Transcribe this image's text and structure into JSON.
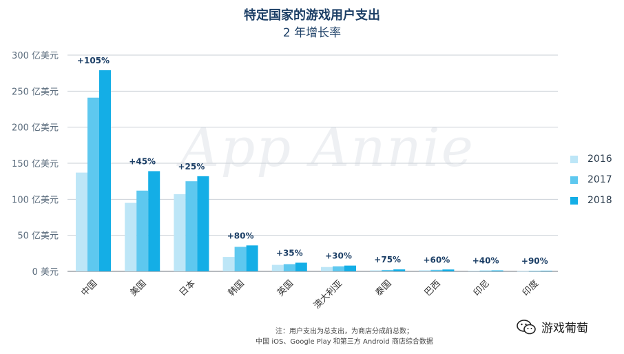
{
  "header": {
    "title": "特定国家的游戏用户支出",
    "subtitle": "2 年增长率"
  },
  "watermark": "App Annie",
  "legend": {
    "items": [
      {
        "label": "2016",
        "color": "#bde6f7"
      },
      {
        "label": "2017",
        "color": "#5ec8ef"
      },
      {
        "label": "2018",
        "color": "#14aee6"
      }
    ]
  },
  "note": {
    "line1": "注：用户支出为总支出，为商店分成前总数；",
    "line2": "中国 iOS、Google Play 和第三方 Android 商店综合数据"
  },
  "brand": {
    "name": "游戏葡萄",
    "icon": "wechat-icon"
  },
  "chart_data": {
    "type": "bar",
    "title": "特定国家的游戏用户支出",
    "subtitle": "2 年增长率",
    "categories": [
      "中国",
      "美国",
      "日本",
      "韩国",
      "英国",
      "澳大利亚",
      "泰国",
      "巴西",
      "印尼",
      "印度"
    ],
    "series": [
      {
        "name": "2016",
        "values": [
          137,
          95,
          107,
          20,
          9,
          6,
          1.5,
          1.6,
          0.9,
          0.4
        ]
      },
      {
        "name": "2017",
        "values": [
          241,
          112,
          125,
          34,
          10,
          7,
          2,
          2.1,
          1.1,
          0.6
        ]
      },
      {
        "name": "2018",
        "values": [
          279,
          139,
          132,
          36,
          12,
          8,
          2.7,
          2.6,
          1.3,
          0.8
        ]
      }
    ],
    "growth_labels": [
      "+105%",
      "+45%",
      "+25%",
      "+80%",
      "+35%",
      "+30%",
      "+75%",
      "+60%",
      "+40%",
      "+90%"
    ],
    "yticks": [
      {
        "value": 0,
        "label": "0 美元"
      },
      {
        "value": 50,
        "label": "50 亿美元"
      },
      {
        "value": 100,
        "label": "100 亿美元"
      },
      {
        "value": 150,
        "label": "150 亿美元"
      },
      {
        "value": 200,
        "label": "200 亿美元"
      },
      {
        "value": 250,
        "label": "250 亿美元"
      },
      {
        "value": 300,
        "label": "300 亿美元"
      }
    ],
    "ylim": [
      0,
      300
    ],
    "grid": true,
    "legend_position": "right"
  }
}
